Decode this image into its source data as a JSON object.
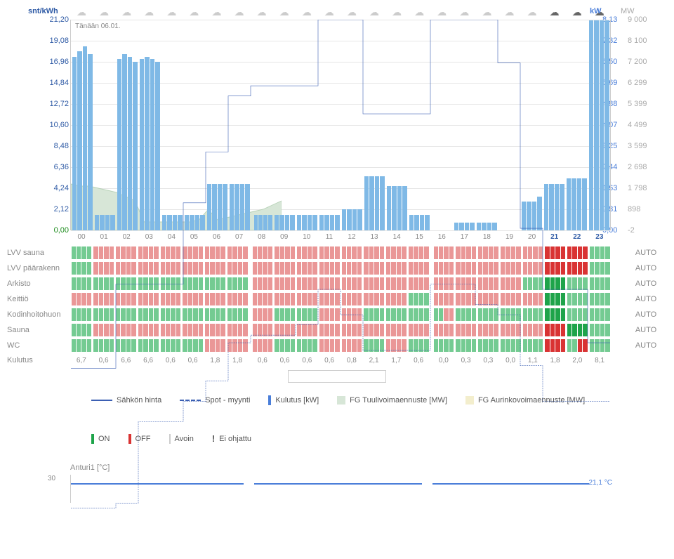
{
  "meta": {
    "date_label": "Tänään 06.01.",
    "left_axis_title": "snt/kWh",
    "right_axis_title_kw": "kW",
    "right_axis_title_mw": "MW"
  },
  "axes": {
    "left_ticks": [
      "21,20",
      "19,08",
      "16,96",
      "14,84",
      "12,72",
      "10,60",
      "8,48",
      "6,36",
      "4,24",
      "2,12",
      "0,00"
    ],
    "left_color": "#2e5aa5",
    "right_kw_ticks": [
      "8,13",
      "7,32",
      "6,50",
      "5,69",
      "4,88",
      "4,07",
      "3,25",
      "2,44",
      "1,63",
      "0,81",
      "0,00"
    ],
    "right_kw_color": "#4a7ed9",
    "right_mw_ticks": [
      "9 000",
      "8 100",
      "7 200",
      "6 299",
      "5 399",
      "4 499",
      "3 599",
      "2 698",
      "1 798",
      "898",
      "-2"
    ],
    "right_mw_color": "#aaaaaa",
    "last_left_color": "#1a8a1a"
  },
  "hours": [
    "00",
    "01",
    "02",
    "03",
    "04",
    "05",
    "06",
    "07",
    "08",
    "09",
    "10",
    "11",
    "12",
    "13",
    "14",
    "15",
    "16",
    "17",
    "18",
    "19",
    "20",
    "21",
    "22",
    "23"
  ],
  "highlight_hours": [
    "21",
    "22",
    "23"
  ],
  "weather_icons": [
    "cloud",
    "cloud",
    "cloud",
    "cloud",
    "cloud",
    "cloud",
    "cloud",
    "cloud",
    "cloud",
    "cloud",
    "cloud",
    "cloud",
    "cloud",
    "cloud",
    "cloud",
    "cloud",
    "cloud",
    "cloud",
    "cloud",
    "cloud",
    "cloud",
    "cloud-dark",
    "cloud-dark",
    "cloud-dark"
  ],
  "gap_hours": [
    8,
    16
  ],
  "chart": {
    "max_kwh": 21.2,
    "max_kw": 8.13,
    "bars_kw": [
      [
        6.7,
        6.9,
        7.1,
        6.8
      ],
      [
        0.6,
        0.6,
        0.6,
        0.6
      ],
      [
        6.6,
        6.8,
        6.7,
        6.5
      ],
      [
        6.6,
        6.7,
        6.6,
        6.5
      ],
      [
        0.6,
        0.6,
        0.6,
        0.6
      ],
      [
        0.6,
        0.6,
        0.6,
        0.6
      ],
      [
        1.8,
        1.8,
        1.8,
        1.8
      ],
      [
        1.8,
        1.8,
        1.8,
        1.8
      ],
      [
        0.6,
        0.6,
        0.6,
        0.6
      ],
      [
        0.6,
        0.6,
        0.6,
        0.6
      ],
      [
        0.6,
        0.6,
        0.6,
        0.6
      ],
      [
        0.6,
        0.6,
        0.6,
        0.6
      ],
      [
        0.8,
        0.8,
        0.8,
        0.8
      ],
      [
        2.1,
        2.1,
        2.1,
        2.1
      ],
      [
        1.7,
        1.7,
        1.7,
        1.7
      ],
      [
        0.6,
        0.6,
        0.6,
        0.6
      ],
      [
        0.0,
        0.0,
        0.0,
        0.0
      ],
      [
        0.3,
        0.3,
        0.3,
        0.3
      ],
      [
        0.3,
        0.3,
        0.3,
        0.3
      ],
      [
        0.0,
        0.0,
        0.0,
        0.0
      ],
      [
        1.1,
        1.1,
        1.1,
        1.3
      ],
      [
        1.8,
        1.8,
        1.8,
        1.8
      ],
      [
        2.0,
        2.0,
        2.0,
        2.0
      ],
      [
        8.1,
        8.1,
        8.1,
        8.1
      ]
    ],
    "bar_color": "#7fb9e6",
    "price_step_kwh": [
      7.5,
      7.5,
      10.8,
      10.8,
      10.8,
      14.0,
      16.0,
      18.2,
      18.6,
      18.6,
      18.6,
      21.2,
      21.2,
      17.5,
      17.5,
      17.5,
      21.2,
      21.2,
      21.2,
      19.5,
      13.0,
      10.6,
      10.6,
      8.5
    ],
    "price_color": "#3b5fb3",
    "spot_step_kwh": [
      2.0,
      2.0,
      2.2,
      5.4,
      5.4,
      6.2,
      7.0,
      8.5,
      8.8,
      8.8,
      9.2,
      10.6,
      9.6,
      8.2,
      8.2,
      8.2,
      10.8,
      10.8,
      10.0,
      9.6,
      7.6,
      6.2,
      6.2,
      6.2
    ],
    "spot_color": "#3b5fb3",
    "wind_mw_norm": [
      0.22,
      0.21,
      0.21,
      0.2,
      0.19,
      0.18,
      0.16,
      0.14,
      0.04,
      0.04,
      0.04,
      0.04,
      0.04,
      0.04,
      0.05,
      0.1,
      0.05,
      0.06,
      0.07,
      0.08,
      0.09,
      0.1,
      0.12,
      0.14
    ],
    "wind_color": "#d7e6d7"
  },
  "schedule": {
    "rows": [
      {
        "label": "LVV sauna",
        "mode": "AUTO",
        "cells": [
          "on",
          "off",
          "off",
          "off",
          "off",
          "off",
          "off",
          "off",
          "off",
          "off",
          "off",
          "off",
          "off",
          "off",
          "off",
          "off",
          "off",
          "off",
          "off",
          "off",
          "off",
          "OFF",
          "OFF",
          "on"
        ]
      },
      {
        "label": "LVV päärakenn",
        "mode": "AUTO",
        "cells": [
          "on",
          "off",
          "off",
          "off",
          "off",
          "off",
          "off",
          "off",
          "off",
          "off",
          "off",
          "off",
          "off",
          "off",
          "off",
          "off",
          "off",
          "off",
          "off",
          "off",
          "off",
          "OFF",
          "OFF",
          "on"
        ]
      },
      {
        "label": "Arkisto",
        "mode": "AUTO",
        "cells": [
          "on",
          "on",
          "on",
          "on",
          "on",
          "on",
          "on",
          "on",
          "off",
          "off",
          "off",
          "off",
          "off",
          "off",
          "off",
          "off",
          "off",
          "off",
          "off",
          "off",
          "on",
          "ON",
          "on",
          "on"
        ]
      },
      {
        "label": "Keittiö",
        "mode": "AUTO",
        "cells": [
          "off",
          "off",
          "off",
          "off",
          "off",
          "off",
          "off",
          "off",
          "off",
          "off",
          "off",
          "off",
          "off",
          "off",
          "off",
          "on",
          "off",
          "off",
          "off",
          "off",
          "off",
          "ON",
          "on",
          "on"
        ]
      },
      {
        "label": "Kodinhoitohuon",
        "mode": "AUTO",
        "cells": [
          "on",
          "on",
          "on",
          "on",
          "on",
          "on",
          "on",
          "on",
          "off",
          "on",
          "on",
          "off",
          "off",
          "on",
          "on",
          "on",
          "on/off",
          "on",
          "on",
          "on",
          "on",
          "ON",
          "on",
          "on"
        ]
      },
      {
        "label": "Sauna",
        "mode": "AUTO",
        "cells": [
          "on",
          "off",
          "off",
          "off",
          "off",
          "off",
          "off",
          "off",
          "off",
          "off",
          "off",
          "off",
          "off",
          "off",
          "off",
          "off",
          "off",
          "off",
          "off",
          "off",
          "off",
          "OFF",
          "ON",
          "on"
        ]
      },
      {
        "label": "WC",
        "mode": "AUTO",
        "cells": [
          "on",
          "on",
          "on",
          "on",
          "on",
          "on",
          "off",
          "off",
          "off",
          "on",
          "on",
          "off",
          "off",
          "on",
          "off",
          "on",
          "on",
          "on",
          "on",
          "on",
          "on",
          "OFF",
          "on/OFF",
          "on"
        ]
      }
    ],
    "colors": {
      "on": "#74cb92",
      "off": "#ea9797",
      "ON": "#1ea44a",
      "OFF": "#d93333"
    }
  },
  "kulutus": {
    "label": "Kulutus",
    "values": [
      "6,7",
      "0,6",
      "6,6",
      "6,6",
      "0,6",
      "0,6",
      "1,8",
      "1,8",
      "0,6",
      "0,6",
      "0,6",
      "0,6",
      "0,8",
      "2,1",
      "1,7",
      "0,6",
      "0,0",
      "0,3",
      "0,3",
      "0,0",
      "1,1",
      "1,8",
      "2,0",
      "8,1"
    ]
  },
  "legend": {
    "row1": [
      {
        "type": "line",
        "color": "#3b5fb3",
        "label": "Sähkön hinta"
      },
      {
        "type": "dash",
        "color": "#3b5fb3",
        "label": "Spot - myynti"
      },
      {
        "type": "bar",
        "color": "#4a7ed9",
        "label": "Kulutus [kW]"
      },
      {
        "type": "block",
        "color": "#d7e6d7",
        "label": "FG Tuulivoimaennuste [MW]"
      },
      {
        "type": "block",
        "color": "#f3eecd",
        "label": "FG Aurinkovoimaennuste [MW]"
      }
    ],
    "row2": [
      {
        "type": "bar",
        "color": "#1ea44a",
        "label": "ON"
      },
      {
        "type": "bar",
        "color": "#d93333",
        "label": "OFF"
      },
      {
        "type": "thin",
        "label": "Avoin"
      },
      {
        "type": "bang",
        "label": "Ei ohjattu"
      }
    ]
  },
  "sensor": {
    "title": "Anturi1 [°C]",
    "y_label": "30",
    "value_label": "21,1 °C",
    "segments": [
      {
        "left_pct": 0,
        "width_pct": 32
      },
      {
        "left_pct": 34,
        "width_pct": 31
      },
      {
        "left_pct": 67,
        "width_pct": 29
      }
    ],
    "color": "#4a7ed9"
  }
}
